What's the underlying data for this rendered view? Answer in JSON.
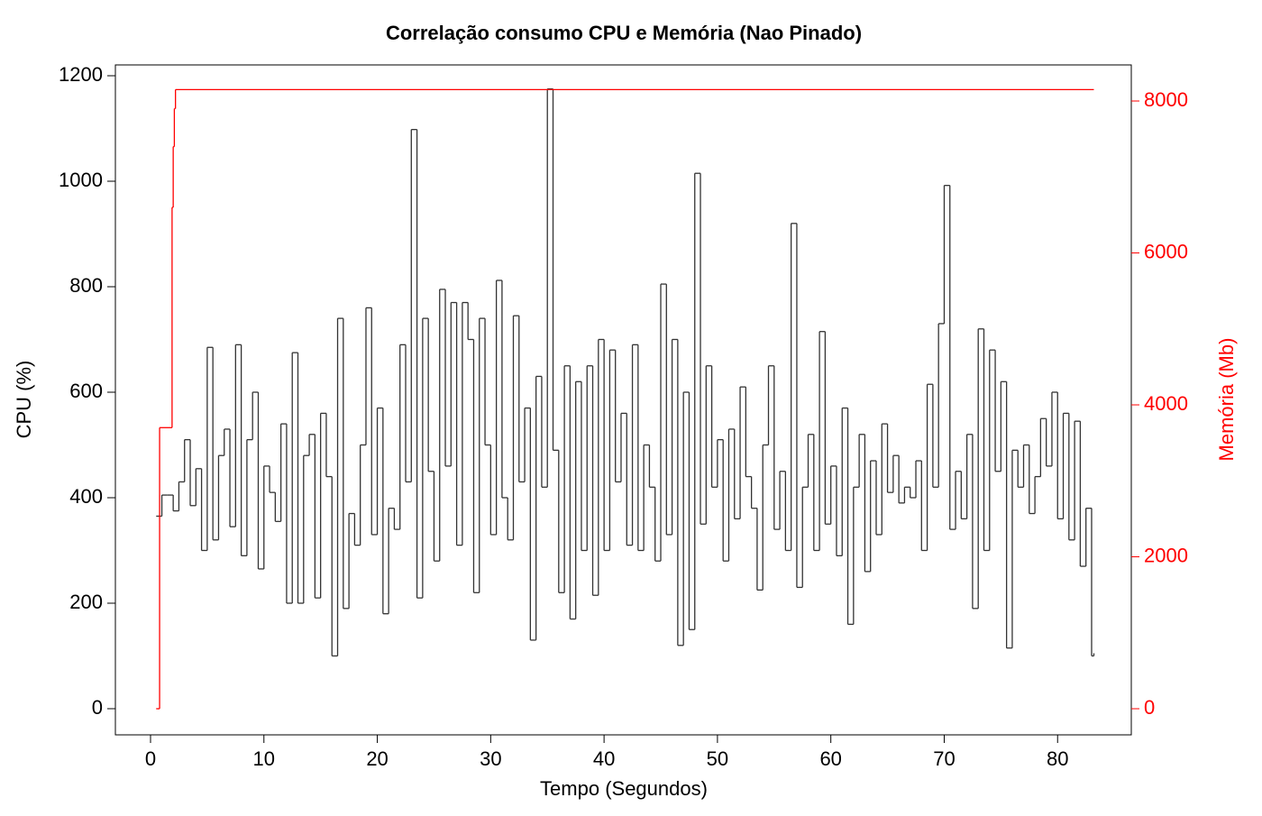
{
  "chart_data": {
    "type": "step",
    "title": "Correlação consumo CPU e Memória (Nao Pinado)",
    "x_label": "Tempo (Segundos)",
    "y_label": "CPU (%)",
    "y2_label": "Memória (Mb)",
    "xlim": [
      -3.1,
      86.5
    ],
    "xticks": [
      0,
      10,
      20,
      30,
      40,
      50,
      60,
      70,
      80
    ],
    "ylim": [
      -49.6,
      1220.5
    ],
    "yticks": [
      0,
      200,
      400,
      600,
      800,
      1000,
      1200
    ],
    "y2lim": [
      -344,
      8475
    ],
    "y2ticks": [
      0,
      2000,
      4000,
      6000,
      8000
    ],
    "y2_color": "#ff0000",
    "series": [
      {
        "name": "CPU",
        "color": "#333333",
        "axis": "y",
        "x": [
          0.5,
          1,
          1.5,
          2,
          2.5,
          3,
          3.5,
          4,
          4.5,
          5,
          5.5,
          6,
          6.5,
          7,
          7.5,
          8,
          8.5,
          9,
          9.5,
          10,
          10.5,
          11,
          11.5,
          12,
          12.5,
          13,
          13.5,
          14,
          14.5,
          15,
          15.5,
          16,
          16.5,
          17,
          17.5,
          18,
          18.5,
          19,
          19.5,
          20,
          20.5,
          21,
          21.5,
          22,
          22.5,
          23,
          23.5,
          24,
          24.5,
          25,
          25.5,
          26,
          26.5,
          27,
          27.5,
          28,
          28.5,
          29,
          29.5,
          30,
          30.5,
          31,
          31.5,
          32,
          32.5,
          33,
          33.5,
          34,
          34.5,
          35,
          35.5,
          36,
          36.5,
          37,
          37.5,
          38,
          38.5,
          39,
          39.5,
          40,
          40.5,
          41,
          41.5,
          42,
          42.5,
          43,
          43.5,
          44,
          44.5,
          45,
          45.5,
          46,
          46.5,
          47,
          47.5,
          48,
          48.5,
          49,
          49.5,
          50,
          50.5,
          51,
          51.5,
          52,
          52.5,
          53,
          53.5,
          54,
          54.5,
          55,
          55.5,
          56,
          56.5,
          57,
          57.5,
          58,
          58.5,
          59,
          59.5,
          60,
          60.5,
          61,
          61.5,
          62,
          62.5,
          63,
          63.5,
          64,
          64.5,
          65,
          65.5,
          66,
          66.5,
          67,
          67.5,
          68,
          68.5,
          69,
          69.5,
          70,
          70.5,
          71,
          71.5,
          72,
          72.5,
          73,
          73.5,
          74,
          74.5,
          75,
          75.5,
          76,
          76.5,
          77,
          77.5,
          78,
          78.5,
          79,
          79.5,
          80,
          80.5,
          81,
          81.5,
          82,
          82.5,
          83,
          83.2
        ],
        "values": [
          365,
          405,
          405,
          375,
          430,
          510,
          385,
          455,
          300,
          685,
          320,
          480,
          530,
          345,
          690,
          290,
          510,
          600,
          265,
          460,
          410,
          355,
          540,
          200,
          675,
          200,
          480,
          520,
          210,
          560,
          440,
          100,
          740,
          190,
          370,
          310,
          500,
          760,
          330,
          570,
          180,
          380,
          340,
          690,
          430,
          1098,
          210,
          740,
          450,
          280,
          795,
          460,
          770,
          310,
          770,
          700,
          220,
          740,
          500,
          330,
          812,
          400,
          320,
          745,
          430,
          570,
          130,
          630,
          420,
          1175,
          490,
          220,
          650,
          170,
          620,
          300,
          650,
          215,
          700,
          300,
          680,
          430,
          560,
          310,
          690,
          300,
          500,
          420,
          280,
          805,
          330,
          700,
          120,
          600,
          150,
          1015,
          350,
          650,
          420,
          510,
          280,
          530,
          360,
          610,
          440,
          380,
          225,
          500,
          650,
          340,
          450,
          300,
          920,
          230,
          420,
          520,
          300,
          715,
          350,
          460,
          290,
          570,
          160,
          420,
          520,
          260,
          470,
          330,
          540,
          410,
          480,
          390,
          420,
          400,
          470,
          300,
          615,
          420,
          730,
          992,
          340,
          450,
          360,
          520,
          190,
          720,
          300,
          680,
          450,
          620,
          115,
          490,
          420,
          500,
          370,
          440,
          550,
          460,
          600,
          360,
          560,
          320,
          545,
          270,
          380,
          100,
          105
        ]
      },
      {
        "name": "Memória",
        "color": "#ff0000",
        "axis": "y2",
        "x": [
          0.5,
          0.8,
          1.9,
          2.0,
          2.1,
          2.2,
          83.2
        ],
        "values": [
          0,
          3700,
          6600,
          7400,
          7900,
          8150,
          8150
        ]
      }
    ]
  }
}
